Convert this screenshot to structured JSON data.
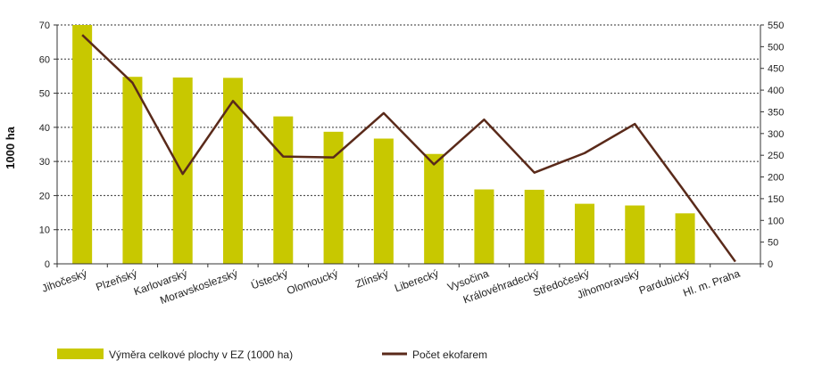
{
  "chart_data": {
    "type": "bar",
    "categories": [
      "Jihočeský",
      "Plzeňský",
      "Karlovarský",
      "Moravskoslezský",
      "Ústecký",
      "Olomoucký",
      "Zlínský",
      "Liberecký",
      "Vysočina",
      "Královéhradecký",
      "Středočeský",
      "Jihomoravský",
      "Pardubický",
      "Hl. m. Praha"
    ],
    "series": [
      {
        "name": "Výměra celkové plochy v EZ (1000 ha)",
        "type": "bar",
        "axis": "left",
        "color": "#c8c800",
        "values": [
          70,
          54.8,
          54.6,
          54.5,
          43.2,
          38.7,
          36.7,
          32.2,
          21.8,
          21.7,
          17.6,
          17.1,
          14.8,
          0
        ]
      },
      {
        "name": "Počet ekofarem",
        "type": "line",
        "axis": "right",
        "color": "#5a2a1a",
        "values": [
          527,
          417,
          207,
          375,
          247,
          245,
          347,
          229,
          332,
          210,
          255,
          322,
          165,
          5
        ]
      }
    ],
    "ylabel": "1000 ha",
    "ylim": [
      0,
      70
    ],
    "yticks": [
      0,
      10,
      20,
      30,
      40,
      50,
      60,
      70
    ],
    "y2lim": [
      0,
      550
    ],
    "y2ticks": [
      0,
      50,
      100,
      150,
      200,
      250,
      300,
      350,
      400,
      450,
      500,
      550
    ],
    "grid": true,
    "legend_position": "bottom"
  }
}
